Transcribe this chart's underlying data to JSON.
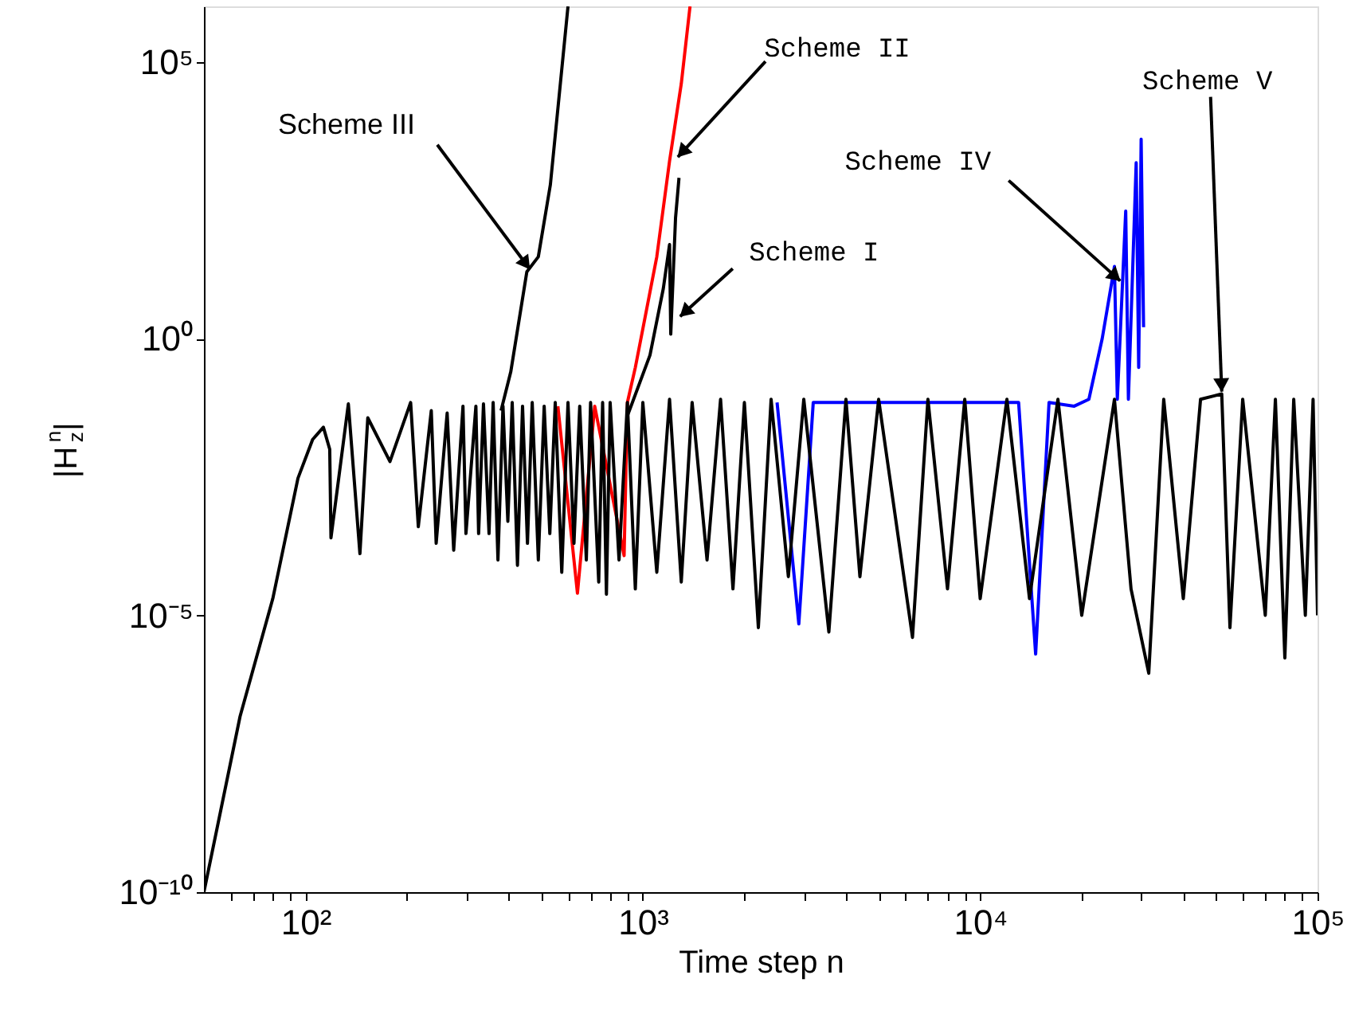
{
  "chart_data": {
    "type": "line",
    "xlabel": "Time step n",
    "ylabel": "|H$_{z}$$^{n}$|",
    "log": "xy",
    "grid": false,
    "marker": "none",
    "line_style": "solid",
    "xlim": [
      50,
      100000
    ],
    "ylim": [
      1e-10,
      1000000
    ],
    "xticks": [
      {
        "value": 60,
        "label": null
      },
      {
        "value": 70,
        "label": null
      },
      {
        "value": 80,
        "label": null
      },
      {
        "value": 90,
        "label": null
      },
      {
        "value": 100,
        "label": "10²"
      },
      {
        "value": 200,
        "label": null
      },
      {
        "value": 300,
        "label": null
      },
      {
        "value": 400,
        "label": null
      },
      {
        "value": 500,
        "label": null
      },
      {
        "value": 600,
        "label": null
      },
      {
        "value": 700,
        "label": null
      },
      {
        "value": 800,
        "label": null
      },
      {
        "value": 900,
        "label": null
      },
      {
        "value": 1000,
        "label": "10³"
      },
      {
        "value": 2000,
        "label": null
      },
      {
        "value": 3000,
        "label": null
      },
      {
        "value": 4000,
        "label": null
      },
      {
        "value": 5000,
        "label": null
      },
      {
        "value": 6000,
        "label": null
      },
      {
        "value": 7000,
        "label": null
      },
      {
        "value": 8000,
        "label": null
      },
      {
        "value": 9000,
        "label": null
      },
      {
        "value": 10000,
        "label": "10⁴"
      },
      {
        "value": 20000,
        "label": null
      },
      {
        "value": 30000,
        "label": null
      },
      {
        "value": 40000,
        "label": null
      },
      {
        "value": 50000,
        "label": null
      },
      {
        "value": 60000,
        "label": null
      },
      {
        "value": 70000,
        "label": null
      },
      {
        "value": 80000,
        "label": null
      },
      {
        "value": 90000,
        "label": null
      },
      {
        "value": 100000,
        "label": "10⁵"
      }
    ],
    "yticks": [
      {
        "value": 1e-10,
        "label": "10⁻¹⁰"
      },
      {
        "value": 1e-05,
        "label": "10⁻⁵"
      },
      {
        "value": 1,
        "label": "10⁰"
      },
      {
        "value": 100000,
        "label": "10⁵"
      }
    ],
    "series": [
      {
        "color": "#000000",
        "x": [
          380,
          406,
          453,
          490,
          532,
          600
        ],
        "values": [
          0.05,
          0.25,
          16,
          30,
          600,
          1000000
        ]
      },
      {
        "color": "#ff0000",
        "x": [
          560,
          640,
          720,
          880,
          900,
          950,
          1000,
          1100,
          1200,
          1300,
          1380
        ],
        "values": [
          0.06,
          2.5e-05,
          0.06,
          0.00012,
          0.07,
          0.3,
          1.5,
          30,
          1600,
          40000,
          1000000
        ]
      },
      {
        "color": "#000000",
        "x": [
          900,
          1050,
          1150,
          1200,
          1210,
          1250,
          1280
        ],
        "values": [
          0.04,
          0.5,
          8,
          50,
          1.2,
          150,
          800
        ]
      },
      {
        "color": "#0000ff",
        "x": [
          2500,
          2900,
          3200,
          13000,
          14600,
          16000,
          19000,
          21000,
          23000,
          25000,
          25500,
          27000,
          27500,
          29000,
          29500,
          30000,
          30500
        ],
        "values": [
          0.07,
          7e-06,
          0.07,
          0.07,
          2e-06,
          0.07,
          0.06,
          0.08,
          1,
          20,
          0.08,
          200,
          0.08,
          1500,
          0.3,
          4000,
          1.6
        ]
      },
      {
        "color": "#000000",
        "x": [
          50,
          64,
          80,
          95,
          105,
          113,
          118,
          119,
          134,
          145,
          153,
          178,
          205,
          216,
          236,
          244,
          263,
          275,
          293,
          299,
          320,
          326,
          337,
          350,
          360,
          372,
          385,
          398,
          410,
          425,
          440,
          455,
          470,
          490,
          510,
          530,
          550,
          575,
          600,
          625,
          650,
          680,
          700,
          740,
          760,
          780,
          800,
          850,
          900,
          950,
          1000,
          1100,
          1200,
          1300,
          1400,
          1550,
          1700,
          1850,
          2000,
          2200,
          2400,
          2700,
          3000,
          3560,
          4000,
          4400,
          5000,
          6300,
          7000,
          8000,
          9000,
          10000,
          12000,
          14000,
          17000,
          20000,
          25000,
          28000,
          31600,
          35000,
          40000,
          45000,
          52000,
          55000,
          60000,
          70000,
          75000,
          80000,
          85000,
          92000,
          97000,
          100000
        ],
        "values": [
          1e-10,
          1.5e-07,
          2e-05,
          0.003,
          0.015,
          0.025,
          0.01,
          0.00025,
          0.066,
          0.00013,
          0.037,
          0.006,
          0.07,
          0.0004,
          0.05,
          0.0002,
          0.045,
          0.00015,
          0.06,
          0.0003,
          0.06,
          0.0003,
          0.066,
          0.0003,
          0.07,
          0.0001,
          0.06,
          0.0005,
          0.07,
          8e-05,
          0.06,
          0.0002,
          0.07,
          0.0001,
          0.06,
          0.0003,
          0.07,
          6e-05,
          0.07,
          0.0002,
          0.06,
          0.0001,
          0.07,
          4e-05,
          0.07,
          2.4e-05,
          0.07,
          0.0001,
          0.07,
          3e-05,
          0.07,
          6e-05,
          0.08,
          4e-05,
          0.07,
          0.0001,
          0.08,
          3e-05,
          0.07,
          6e-06,
          0.08,
          5e-05,
          0.08,
          5e-06,
          0.08,
          5e-05,
          0.08,
          4e-06,
          0.08,
          3e-05,
          0.08,
          2e-05,
          0.08,
          2e-05,
          0.08,
          1e-05,
          0.08,
          3e-05,
          9e-07,
          0.08,
          2e-05,
          0.08,
          0.1,
          6e-06,
          0.08,
          1e-05,
          0.08,
          1.7e-06,
          0.08,
          1e-05,
          0.08,
          1e-05
        ]
      }
    ],
    "annotations": [
      {
        "text": "Scheme III",
        "x": 462,
        "y": 18
      },
      {
        "text": "Scheme II",
        "x": 1270,
        "y": 1900
      },
      {
        "text": "Scheme I",
        "x": 1290,
        "y": 2.5
      },
      {
        "text": "Scheme IV",
        "x": 26000,
        "y": 11
      },
      {
        "text": "Scheme V",
        "x": 52000,
        "y": 0.11
      }
    ]
  }
}
